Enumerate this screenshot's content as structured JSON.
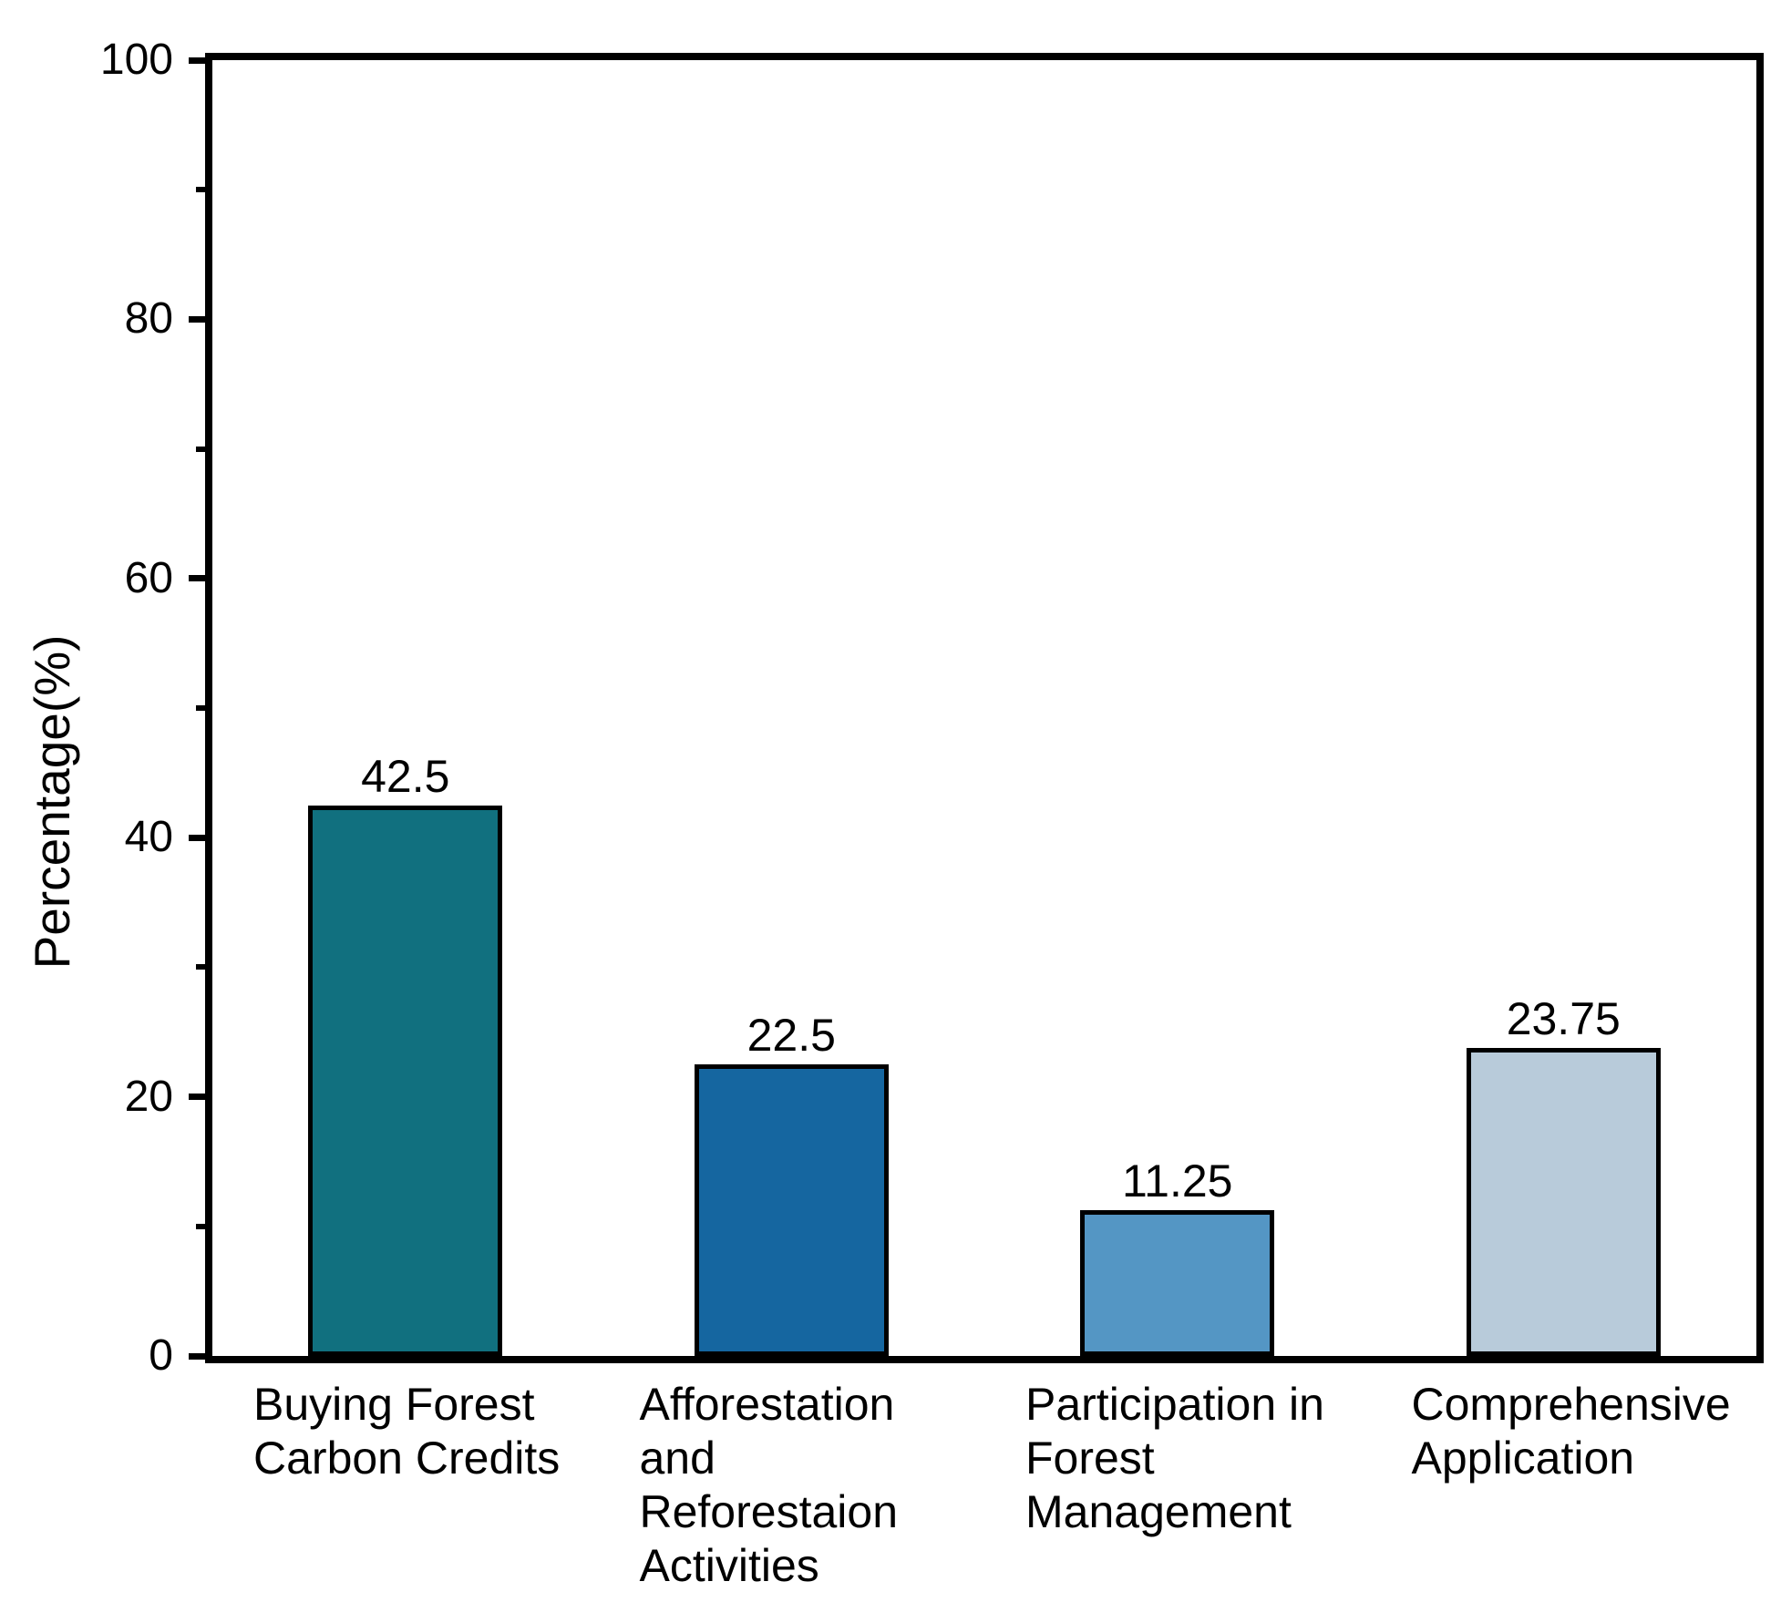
{
  "chart_data": {
    "type": "bar",
    "title": "",
    "xlabel": "",
    "ylabel": "Percentage(%)",
    "ylim": [
      0,
      100
    ],
    "yticks": [
      0,
      20,
      40,
      60,
      80,
      100
    ],
    "yticks_minor": [
      10,
      30,
      50,
      70,
      90
    ],
    "grid": false,
    "legend": false,
    "frame": "full-box",
    "categories": [
      "Buying Forest\nCarbon Credits",
      "Afforestation\nand\nReforestaion\nActivities",
      "Participation in\nForest\nManagement",
      "Comprehensive\nApplication"
    ],
    "values": [
      42.5,
      22.5,
      11.25,
      23.75
    ],
    "value_labels": [
      "42.5",
      "22.5",
      "11.25",
      "23.75"
    ],
    "bar_colors": [
      "#11707f",
      "#1566a0",
      "#5496c4",
      "#b8cbda"
    ],
    "bar_edge_color": "#000000",
    "axis_color": "#000000",
    "background_color": "#ffffff"
  }
}
